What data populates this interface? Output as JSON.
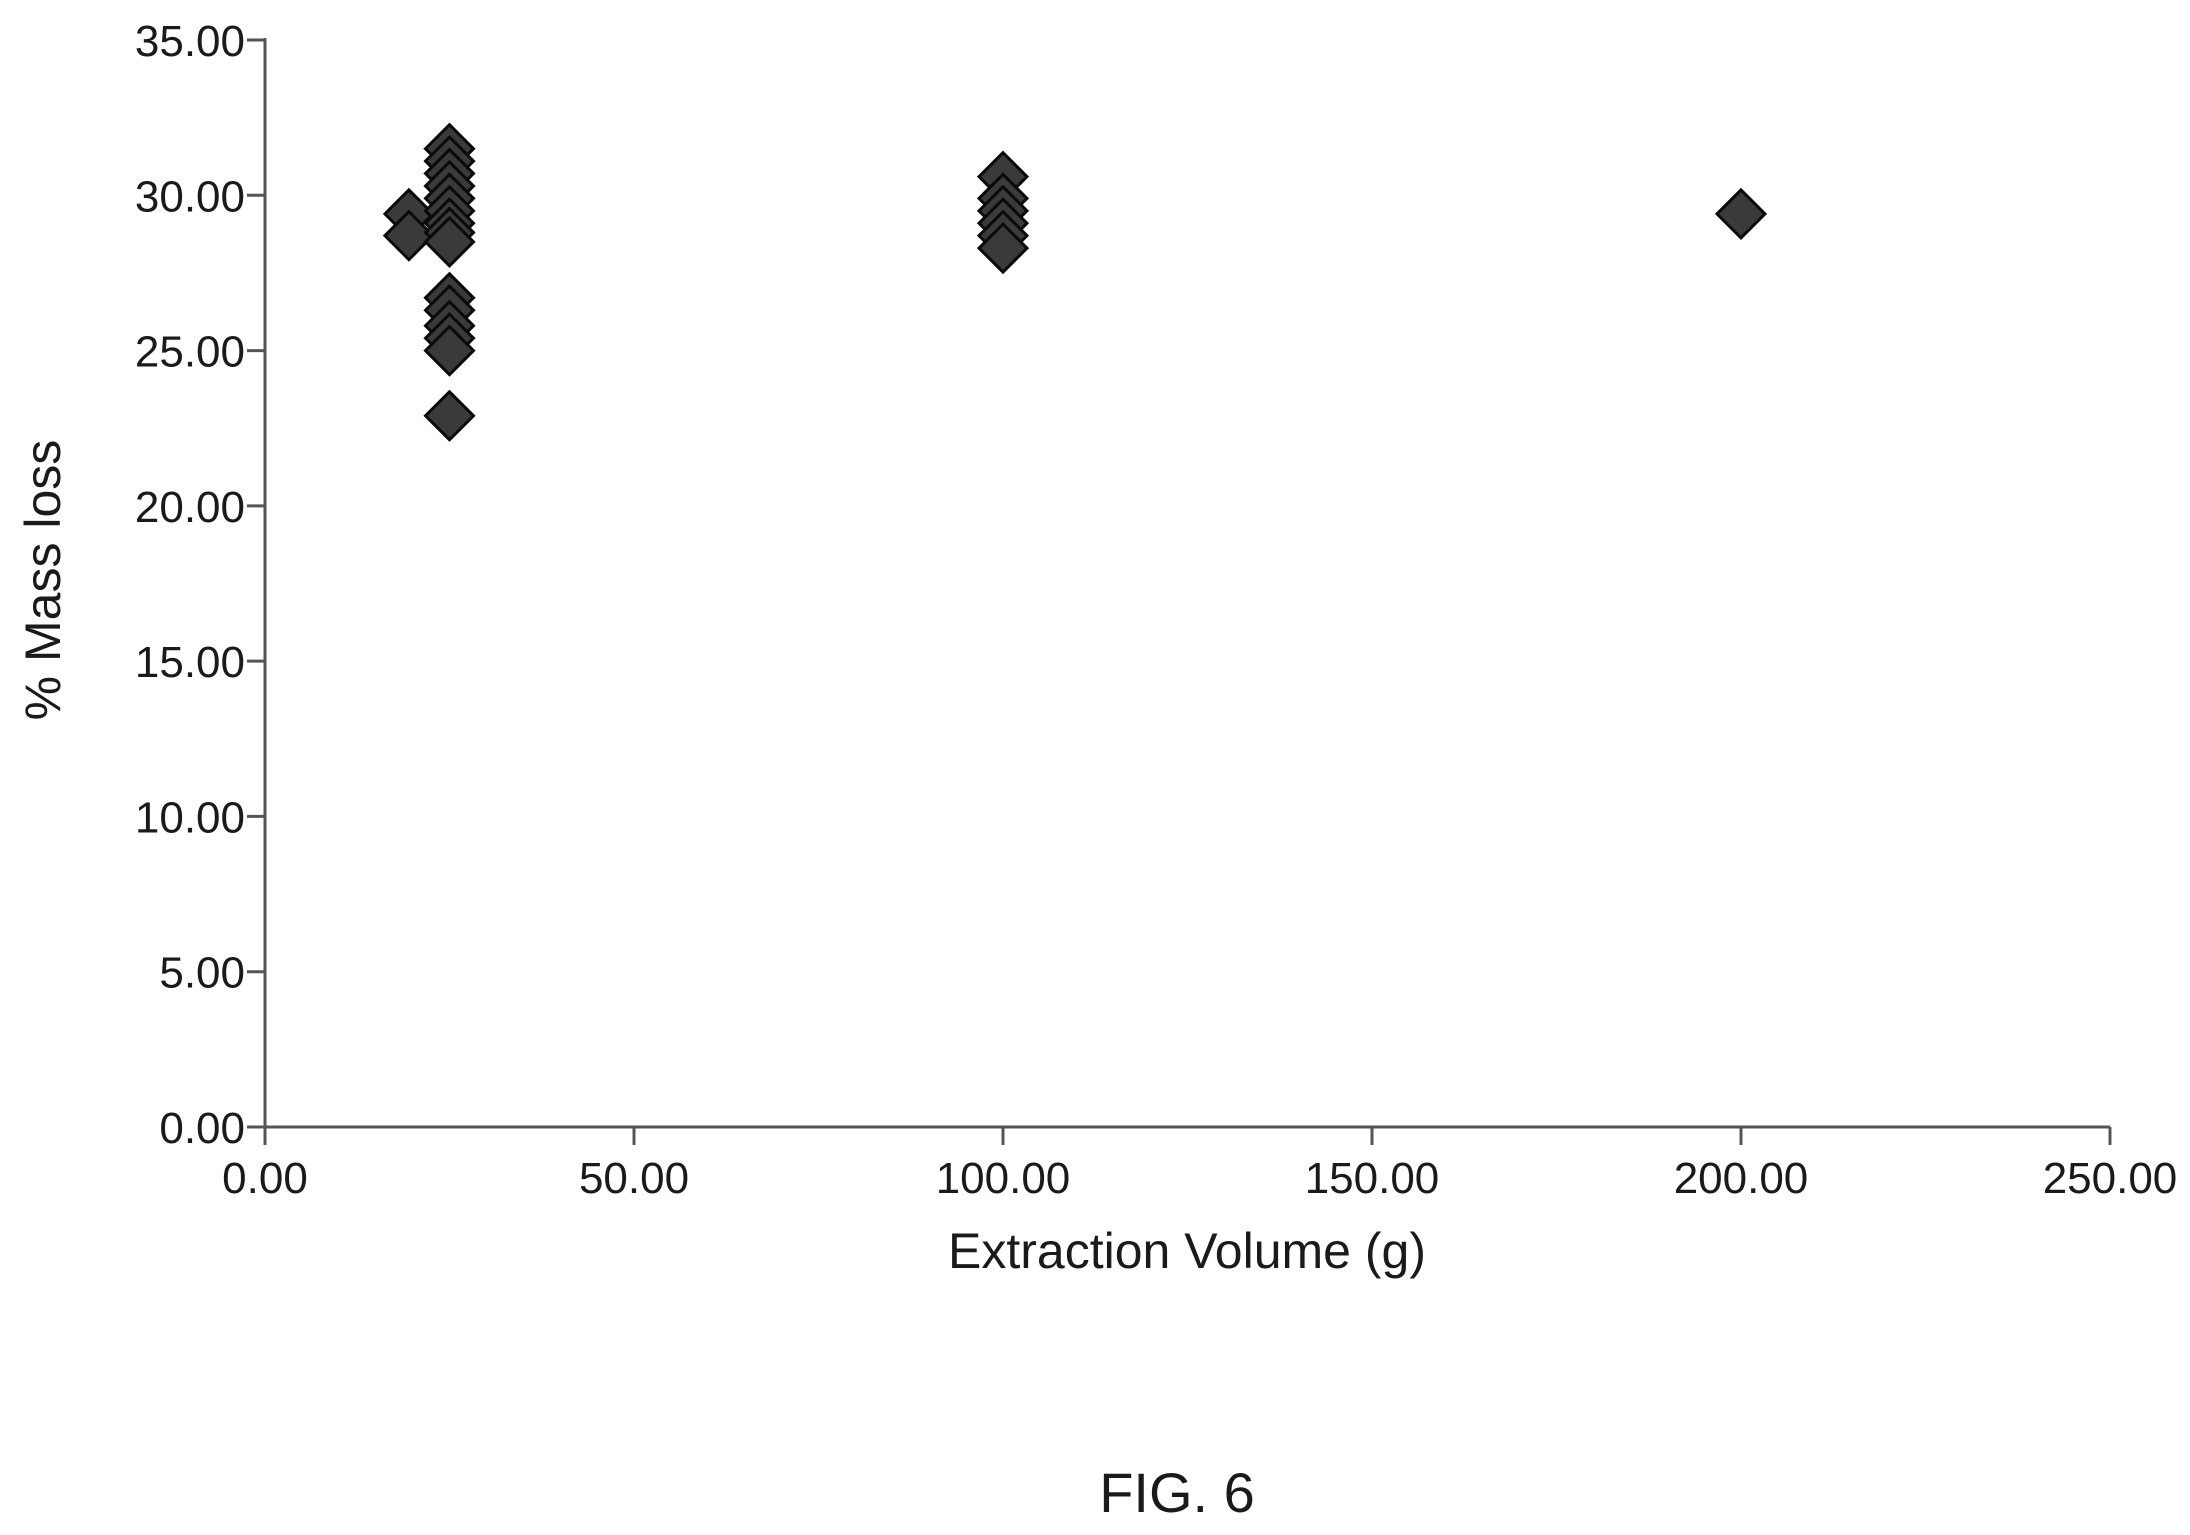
{
  "chart_data": {
    "type": "scatter",
    "title": "",
    "xlabel": "Extraction Volume (g)",
    "ylabel": "% Mass loss",
    "xlim": [
      0,
      250
    ],
    "ylim": [
      0,
      35
    ],
    "x_ticks": [
      "0.00",
      "50.00",
      "100.00",
      "150.00",
      "200.00",
      "250.00"
    ],
    "y_ticks": [
      "0.00",
      "5.00",
      "10.00",
      "15.00",
      "20.00",
      "25.00",
      "30.00",
      "35.00"
    ],
    "grid": false,
    "legend": "none",
    "marker": "diamond",
    "marker_color": "#3a3a3a",
    "series": [
      {
        "points": [
          {
            "x": 19.5,
            "y": 29.4
          },
          {
            "x": 19.5,
            "y": 28.7
          },
          {
            "x": 25,
            "y": 31.5
          },
          {
            "x": 25,
            "y": 31.1
          },
          {
            "x": 25,
            "y": 30.7
          },
          {
            "x": 25,
            "y": 30.3
          },
          {
            "x": 25,
            "y": 29.9
          },
          {
            "x": 25,
            "y": 29.5
          },
          {
            "x": 25,
            "y": 29.1
          },
          {
            "x": 25,
            "y": 28.8
          },
          {
            "x": 25,
            "y": 28.5
          },
          {
            "x": 25,
            "y": 26.7
          },
          {
            "x": 25,
            "y": 26.3
          },
          {
            "x": 25,
            "y": 25.8
          },
          {
            "x": 25,
            "y": 25.4
          },
          {
            "x": 25,
            "y": 25.0
          },
          {
            "x": 25,
            "y": 22.9
          },
          {
            "x": 100,
            "y": 30.6
          },
          {
            "x": 100,
            "y": 29.9
          },
          {
            "x": 100,
            "y": 29.5
          },
          {
            "x": 100,
            "y": 29.1
          },
          {
            "x": 100,
            "y": 28.7
          },
          {
            "x": 100,
            "y": 28.3
          },
          {
            "x": 200,
            "y": 29.4
          }
        ]
      }
    ]
  },
  "caption": "FIG. 6"
}
